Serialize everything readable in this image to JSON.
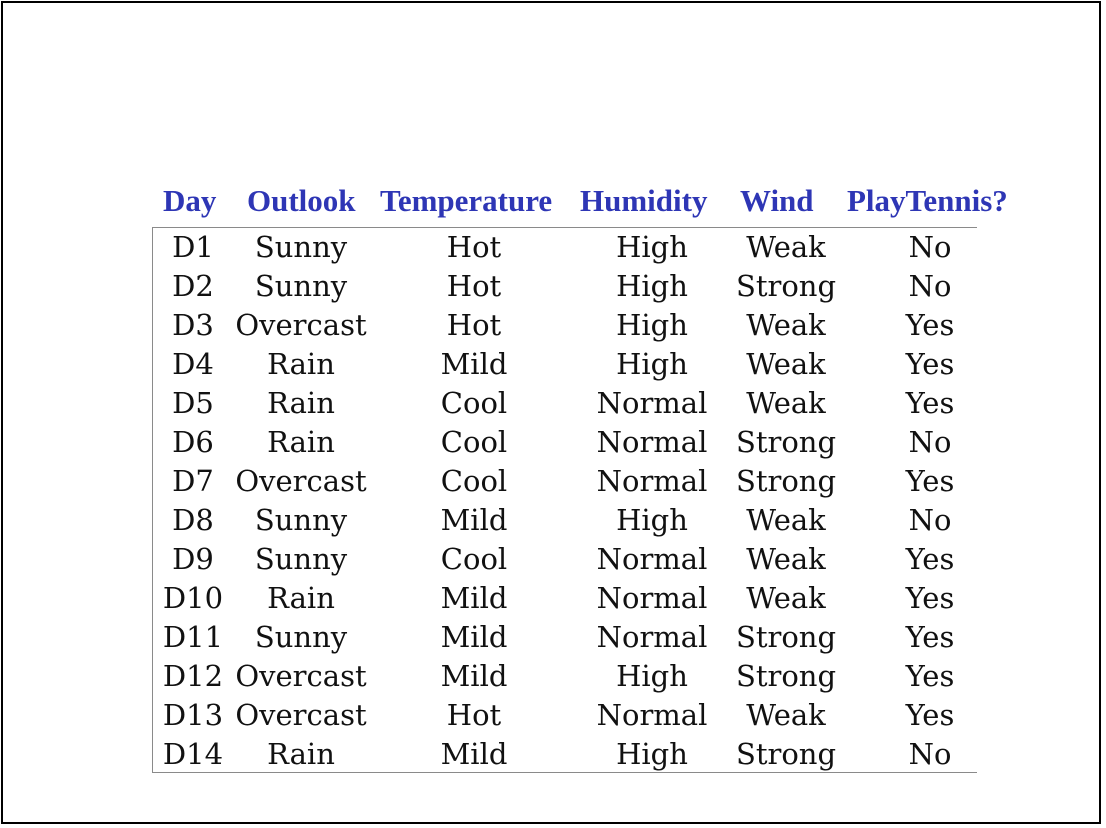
{
  "table": {
    "headers": {
      "day": "Day",
      "outlook": "Outlook",
      "temperature": "Temperature",
      "humidity": "Humidity",
      "wind": "Wind",
      "play": "PlayTennis?"
    },
    "rows": [
      {
        "day": "D1",
        "outlook": "Sunny",
        "temperature": "Hot",
        "humidity": "High",
        "wind": "Weak",
        "play": "No"
      },
      {
        "day": "D2",
        "outlook": "Sunny",
        "temperature": "Hot",
        "humidity": "High",
        "wind": "Strong",
        "play": "No"
      },
      {
        "day": "D3",
        "outlook": "Overcast",
        "temperature": "Hot",
        "humidity": "High",
        "wind": "Weak",
        "play": "Yes"
      },
      {
        "day": "D4",
        "outlook": "Rain",
        "temperature": "Mild",
        "humidity": "High",
        "wind": "Weak",
        "play": "Yes"
      },
      {
        "day": "D5",
        "outlook": "Rain",
        "temperature": "Cool",
        "humidity": "Normal",
        "wind": "Weak",
        "play": "Yes"
      },
      {
        "day": "D6",
        "outlook": "Rain",
        "temperature": "Cool",
        "humidity": "Normal",
        "wind": "Strong",
        "play": "No"
      },
      {
        "day": "D7",
        "outlook": "Overcast",
        "temperature": "Cool",
        "humidity": "Normal",
        "wind": "Strong",
        "play": "Yes"
      },
      {
        "day": "D8",
        "outlook": "Sunny",
        "temperature": "Mild",
        "humidity": "High",
        "wind": "Weak",
        "play": "No"
      },
      {
        "day": "D9",
        "outlook": "Sunny",
        "temperature": "Cool",
        "humidity": "Normal",
        "wind": "Weak",
        "play": "Yes"
      },
      {
        "day": "D10",
        "outlook": "Rain",
        "temperature": "Mild",
        "humidity": "Normal",
        "wind": "Weak",
        "play": "Yes"
      },
      {
        "day": "D11",
        "outlook": "Sunny",
        "temperature": "Mild",
        "humidity": "Normal",
        "wind": "Strong",
        "play": "Yes"
      },
      {
        "day": "D12",
        "outlook": "Overcast",
        "temperature": "Mild",
        "humidity": "High",
        "wind": "Strong",
        "play": "Yes"
      },
      {
        "day": "D13",
        "outlook": "Overcast",
        "temperature": "Hot",
        "humidity": "Normal",
        "wind": "Weak",
        "play": "Yes"
      },
      {
        "day": "D14",
        "outlook": "Rain",
        "temperature": "Mild",
        "humidity": "High",
        "wind": "Strong",
        "play": "No"
      }
    ]
  },
  "colors": {
    "header_text": "#2e36b5",
    "body_text": "#111111",
    "rule": "#8a8a8a",
    "frame": "#000000"
  }
}
